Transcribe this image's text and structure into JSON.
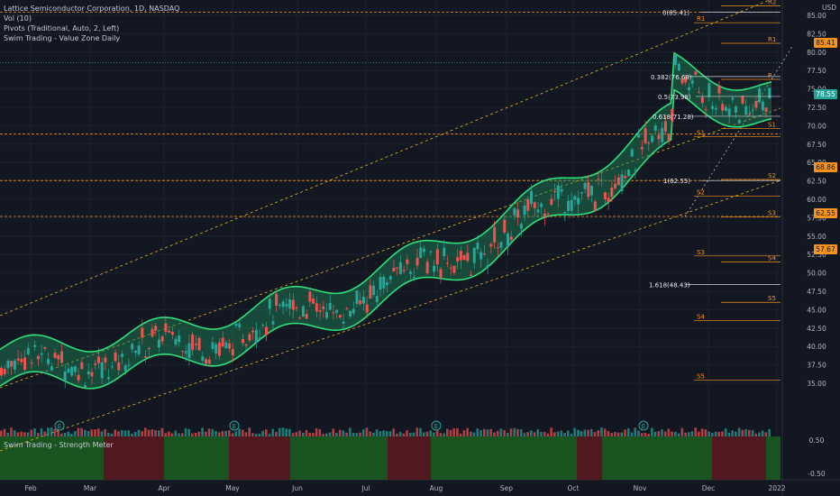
{
  "legend": {
    "title": "Lattice Semiconductor Corporation, 1D, NASDAQ",
    "vol": "Vol (10)",
    "pivots": "Pivots (Traditional, Auto, 2, Left)",
    "value_zone": "Swim Trading - Value Zone Daily"
  },
  "strength_meter_label": "Swim Trading - Strength Meter",
  "currency": "USD",
  "price_axis": [
    "85.00",
    "82.50",
    "80.00",
    "77.50",
    "75.00",
    "72.50",
    "70.00",
    "67.50",
    "65.00",
    "62.50",
    "60.00",
    "57.50",
    "55.00",
    "52.50",
    "50.00",
    "47.50",
    "45.00",
    "42.50",
    "40.00",
    "37.50",
    "35.00"
  ],
  "meter_axis": [
    "0.50",
    "-0.50"
  ],
  "time_axis": [
    "Feb",
    "Mar",
    "Apr",
    "May",
    "Jun",
    "Jul",
    "Aug",
    "Sep",
    "Oct",
    "Nov",
    "Dec",
    "2022"
  ],
  "price_tags": {
    "high": "85.41",
    "last": "78.55",
    "s1_level": "68.86",
    "fib1": "62.55",
    "s3_level": "57.67"
  },
  "fib_labels": [
    "0(85.41)",
    "0.382(76.68)",
    "0.5(73.98)",
    "0.618(71.28)",
    "1(62.55)",
    "1.618(48.43)"
  ],
  "pivot_labels": {
    "right": [
      "R2",
      "R1",
      "P",
      "S1",
      "S2",
      "S3",
      "S4",
      "S5"
    ],
    "left": [
      "R1",
      "S1",
      "S2",
      "S3",
      "S4",
      "S5"
    ]
  },
  "event_badge": "E",
  "colors": {
    "background": "#131722",
    "up": "#26a69a",
    "down": "#ef5350",
    "zone_line": "#2ee07a",
    "zone_fill": "#1f8a5a",
    "pivot": "#f7931a",
    "channel": "#e6b422",
    "last_price": "#26a69a",
    "meter_green": "#1b5e20",
    "meter_red": "#5c1a1f"
  }
}
